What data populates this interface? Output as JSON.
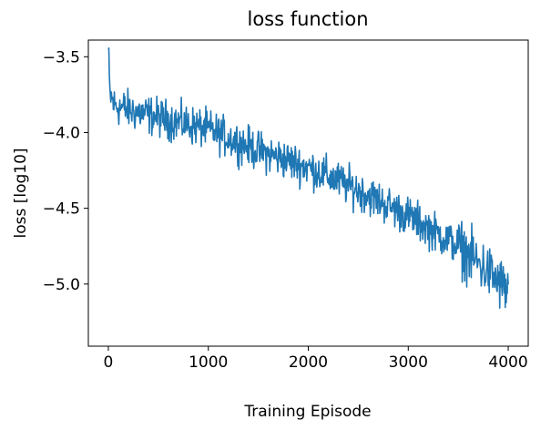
{
  "chart_data": {
    "type": "line",
    "title": "loss function",
    "xlabel": "Training Episode",
    "ylabel": "loss [log10]",
    "xlim": [
      -200,
      4200
    ],
    "ylim": [
      -5.41,
      -3.39
    ],
    "xticks": [
      0,
      1000,
      2000,
      3000,
      4000
    ],
    "xtick_labels": [
      "0",
      "1000",
      "2000",
      "3000",
      "4000"
    ],
    "yticks": [
      -5.0,
      -4.5,
      -4.0,
      -3.5
    ],
    "ytick_labels": [
      "−5.0",
      "−4.5",
      "−4.0",
      "−3.5"
    ],
    "grid": false,
    "line_color": "#1f77b4",
    "series": [
      {
        "x_start": 0,
        "x_end": 4000,
        "trend": [
          [
            0,
            -3.45
          ],
          [
            15,
            -3.75
          ],
          [
            60,
            -3.82
          ],
          [
            200,
            -3.85
          ],
          [
            500,
            -3.9
          ],
          [
            1000,
            -3.98
          ],
          [
            1500,
            -4.12
          ],
          [
            2000,
            -4.23
          ],
          [
            2500,
            -4.38
          ],
          [
            3000,
            -4.55
          ],
          [
            3500,
            -4.75
          ],
          [
            3800,
            -4.92
          ],
          [
            4000,
            -5.05
          ]
        ],
        "noise_amplitude": 0.09,
        "n_points": 800
      }
    ]
  }
}
